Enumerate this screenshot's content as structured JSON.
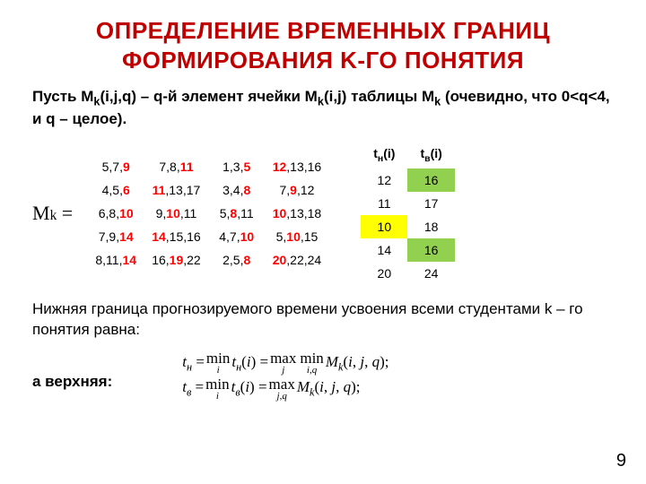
{
  "title": "ОПРЕДЕЛЕНИЕ ВРЕМЕННЫХ ГРАНИЦ ФОРМИРОВАНИЯ K-ГО ПОНЯТИЯ",
  "intro_before_sub1": "Пусть  M",
  "intro_sub1": "k",
  "intro_mid1": "(i,j,q) – q-й элемент ячейки M",
  "intro_sub2": "k",
  "intro_mid2": "(i,j) таблицы M",
  "intro_sub3": "k",
  "intro_end": " (очевидно, что 0<q<4, и q – целое).",
  "mk_label_before": "M",
  "mk_label_sub": "k",
  "mk_label_after": " =",
  "matrix": [
    [
      [
        "5",
        "7",
        "9",
        [
          0,
          0,
          1
        ]
      ],
      [
        "7",
        "8",
        "11",
        [
          0,
          0,
          1
        ]
      ],
      [
        "1",
        "3",
        "5",
        [
          0,
          0,
          1
        ]
      ],
      [
        "12",
        "13",
        "16",
        [
          1,
          0,
          0
        ]
      ]
    ],
    [
      [
        "4",
        "5",
        "6",
        [
          0,
          0,
          1
        ]
      ],
      [
        "11",
        "13",
        "17",
        [
          1,
          0,
          0
        ]
      ],
      [
        "3",
        "4",
        "8",
        [
          0,
          0,
          1
        ]
      ],
      [
        "7",
        "9",
        "12",
        [
          0,
          1,
          0
        ]
      ]
    ],
    [
      [
        "6",
        "8",
        "10",
        [
          0,
          0,
          1
        ]
      ],
      [
        "9",
        "10",
        "11",
        [
          0,
          1,
          0
        ]
      ],
      [
        "5",
        "8",
        "11",
        [
          0,
          1,
          0
        ]
      ],
      [
        "10",
        "13",
        "18",
        [
          1,
          0,
          0
        ]
      ]
    ],
    [
      [
        "7",
        "9",
        "14",
        [
          0,
          0,
          1
        ]
      ],
      [
        "14",
        "15",
        "16",
        [
          1,
          0,
          0
        ]
      ],
      [
        "4",
        "7",
        "10",
        [
          0,
          0,
          1
        ]
      ],
      [
        "5",
        "10",
        "15",
        [
          0,
          1,
          0
        ]
      ]
    ],
    [
      [
        "8",
        "11",
        "14",
        [
          0,
          0,
          1
        ]
      ],
      [
        "16",
        "19",
        "22",
        [
          0,
          1,
          0
        ]
      ],
      [
        "2",
        "5",
        "8",
        [
          0,
          0,
          1
        ]
      ],
      [
        "20",
        "22",
        "24",
        [
          1,
          0,
          0
        ]
      ]
    ]
  ],
  "tcol_headers": {
    "h1_a": "t",
    "h1_b": "н",
    "h1_c": "(i)",
    "h2_a": "t",
    "h2_b": "в",
    "h2_c": "(i)"
  },
  "tcol_rows": [
    {
      "a": "12",
      "b": "16",
      "a_hl": "",
      "b_hl": "hl-green"
    },
    {
      "a": "11",
      "b": "17",
      "a_hl": "",
      "b_hl": ""
    },
    {
      "a": "10",
      "b": "18",
      "a_hl": "hl-yellow",
      "b_hl": ""
    },
    {
      "a": "14",
      "b": "16",
      "a_hl": "",
      "b_hl": "hl-green"
    },
    {
      "a": "20",
      "b": "24",
      "a_hl": "",
      "b_hl": ""
    }
  ],
  "lower_text": "Нижняя граница  прогнозируемого времени усвоения всеми студентами k – го понятия равна:",
  "upper_label": "а верхняя:",
  "formula1": {
    "lhs_sub": "н",
    "mid_sub": "н",
    "rhs_sub": "k"
  },
  "formula2": {
    "lhs_sub": "в",
    "mid_sub": "в",
    "rhs_sub": "k"
  },
  "page_number": "9",
  "colors": {
    "title": "#c00000",
    "red": "#ff0000",
    "green": "#92d050",
    "yellow": "#ffff00",
    "bg": "#ffffff"
  }
}
